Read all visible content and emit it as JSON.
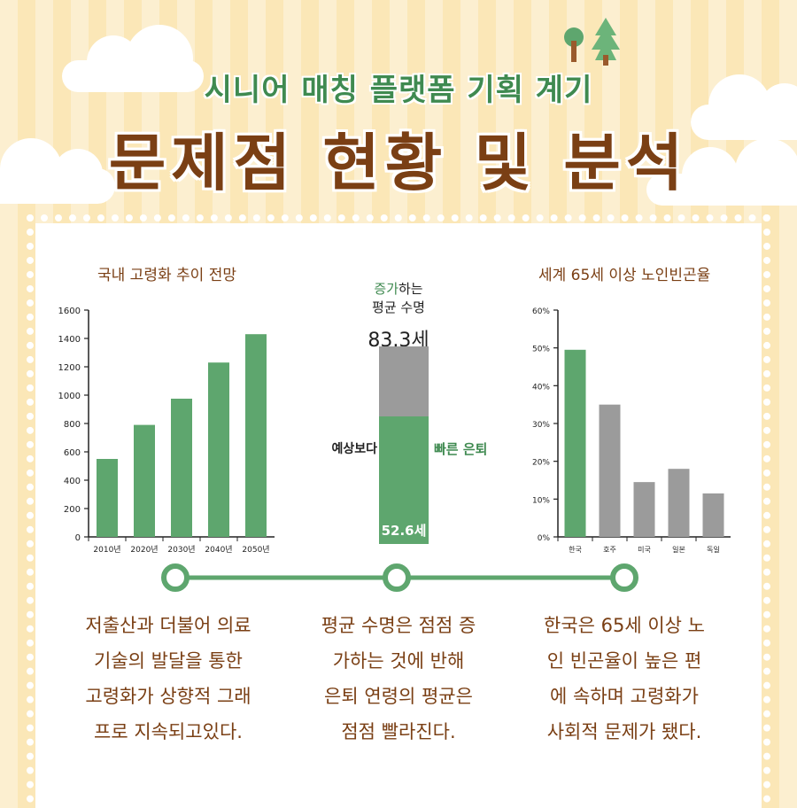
{
  "header": {
    "subtitle": "시니어 매칭 플랫폼 기획 계기",
    "title": "문제점 현황 및 분석"
  },
  "colors": {
    "green": "#5ea66e",
    "gray": "#9b9b9b",
    "brown": "#7a3f14",
    "title_green": "#3f8a50"
  },
  "chart_data": [
    {
      "type": "bar",
      "title": "국내 고령화 추이 전망",
      "categories": [
        "2010년",
        "2020년",
        "2030년",
        "2040년",
        "2050년"
      ],
      "values": [
        550,
        790,
        975,
        1230,
        1430
      ],
      "ylim": [
        0,
        1600
      ],
      "yticks": [
        0,
        200,
        400,
        600,
        800,
        1000,
        1200,
        1400,
        1600
      ],
      "ytick_labels": [
        "0",
        "200",
        "400",
        "600",
        "800",
        "1000",
        "1200",
        "1400",
        "1600"
      ],
      "grid": false,
      "bar_color": "#5ea66e"
    },
    {
      "type": "bar",
      "subtype": "stacked-single",
      "title_highlight": "증가",
      "title_line1_rest": "하는",
      "title_line2": "평균 수명",
      "segments": [
        {
          "label": "은퇴",
          "value": 52.6
        },
        {
          "label": "수명",
          "value": 83.3
        }
      ],
      "total_label": "83.3세",
      "retire_label": "52.6세",
      "left_note": "예상보다",
      "right_note": "빠른 은퇴"
    },
    {
      "type": "bar",
      "title": "세계 65세 이상 노인빈곤율",
      "categories": [
        "한국",
        "호주",
        "미국",
        "일본",
        "독일"
      ],
      "values": [
        49.5,
        35,
        14.5,
        18,
        11.5
      ],
      "ylim": [
        0,
        60
      ],
      "yticks": [
        0,
        10,
        20,
        30,
        40,
        50,
        60
      ],
      "ytick_labels": [
        "0%",
        "10%",
        "20%",
        "30%",
        "40%",
        "50%",
        "60%"
      ],
      "grid": false,
      "highlight_index": 0
    }
  ],
  "descriptions": [
    {
      "lines": [
        "저출산과 더불어 의료",
        "기술의 발달을 통한",
        "고령화가 상향적 그래",
        "프로 지속되고있다."
      ]
    },
    {
      "lines": [
        "평균 수명은 점점 증",
        "가하는 것에 반해",
        "은퇴 연령의 평균은",
        "점점 빨라진다."
      ]
    },
    {
      "lines": [
        "한국은 65세 이상 노",
        "인 빈곤율이 높은 편",
        "에 속하며 고령화가",
        "사회적 문제가 됐다."
      ]
    }
  ]
}
